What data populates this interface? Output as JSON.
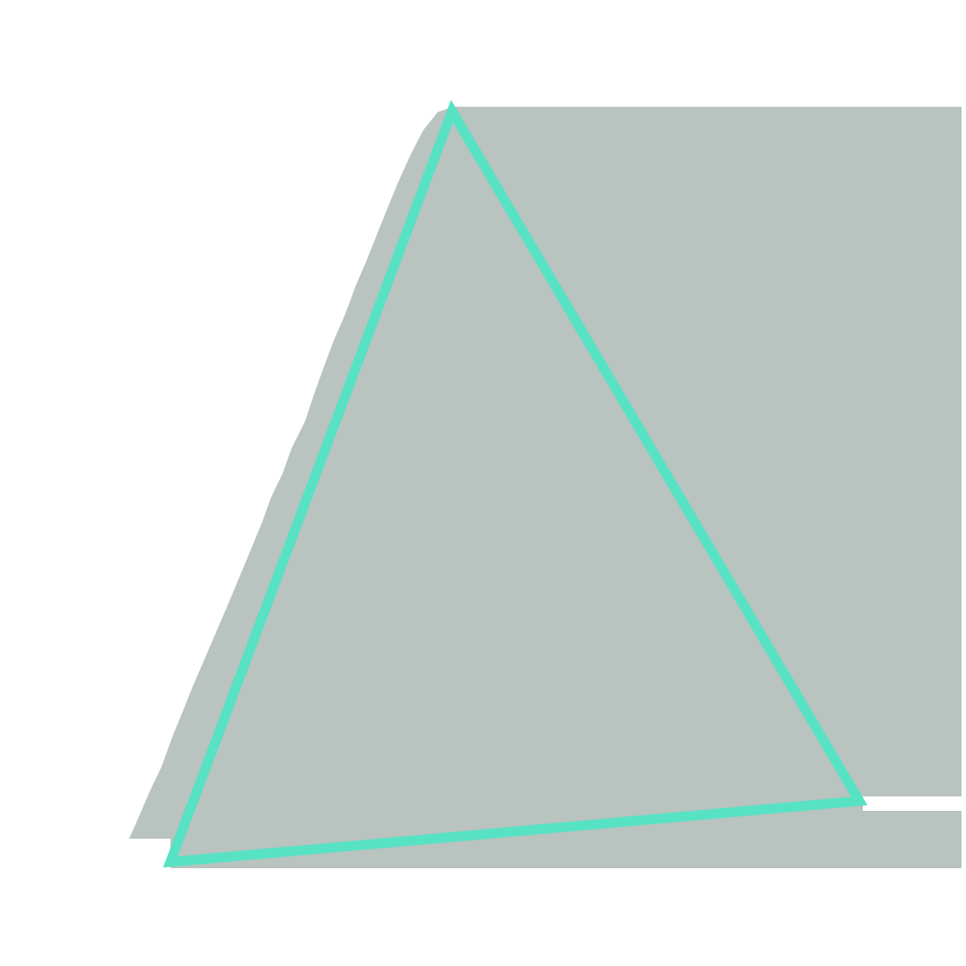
{
  "artwork": {
    "subject": "triangle-outline",
    "colors": {
      "background": "#ffffff",
      "shadow_fill": "#b9c3bf",
      "outline": "#57e2c4"
    }
  }
}
